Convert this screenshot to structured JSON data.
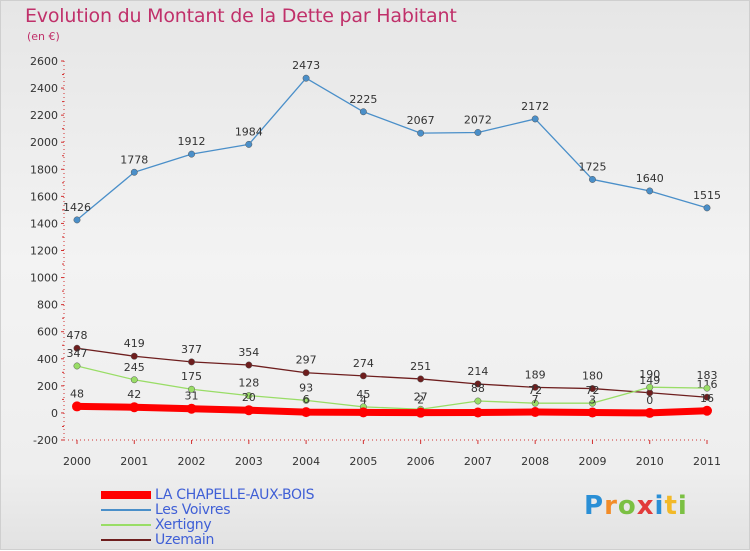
{
  "title": "Evolution du Montant de la Dette par Habitant",
  "subtitle": "(en €)",
  "logo_text": "Proxiti",
  "chart_data": {
    "type": "line",
    "title": "Evolution du Montant de la Dette par Habitant",
    "subtitle": "(en €)",
    "xlabel": "",
    "ylabel": "",
    "x": [
      "2000",
      "2001",
      "2002",
      "2003",
      "2004",
      "2005",
      "2006",
      "2007",
      "2008",
      "2009",
      "2010",
      "2011"
    ],
    "ylim": [
      -200,
      2600
    ],
    "yticks": [
      -200,
      0,
      200,
      400,
      600,
      800,
      1000,
      1200,
      1400,
      1600,
      1800,
      2000,
      2200,
      2400,
      2600
    ],
    "grid": false,
    "legend_position": "bottom-left",
    "series": [
      {
        "name": "LA CHAPELLE-AUX-BOIS",
        "color": "#ff0000",
        "values": [
          48,
          42,
          31,
          20,
          6,
          4,
          2,
          3,
          7,
          3,
          0,
          16
        ],
        "labels": [
          "48",
          "42",
          "31",
          "20",
          "6",
          "4",
          "2",
          "",
          "7",
          "3",
          "0",
          "16"
        ]
      },
      {
        "name": "Les Voivres",
        "color": "#4a8fc9",
        "values": [
          1426,
          1778,
          1912,
          1984,
          2473,
          2225,
          2067,
          2072,
          2172,
          1725,
          1640,
          1515
        ],
        "labels": [
          "1426",
          "1778",
          "1912",
          "1984",
          "2473",
          "2225",
          "2067",
          "2072",
          "2172",
          "1725",
          "1640",
          "1515"
        ]
      },
      {
        "name": "Xertigny",
        "color": "#99dd66",
        "values": [
          347,
          245,
          175,
          128,
          93,
          45,
          27,
          88,
          72,
          72,
          190,
          183
        ],
        "labels": [
          "347",
          "245",
          "175",
          "128",
          "93",
          "45",
          "27",
          "88",
          "72",
          "72",
          "190",
          "183"
        ]
      },
      {
        "name": "Uzemain",
        "color": "#6e1e1e",
        "values": [
          478,
          419,
          377,
          354,
          297,
          274,
          251,
          214,
          189,
          180,
          149,
          116
        ],
        "labels": [
          "478",
          "419",
          "377",
          "354",
          "297",
          "274",
          "251",
          "214",
          "189",
          "180",
          "149",
          "116"
        ]
      }
    ]
  }
}
